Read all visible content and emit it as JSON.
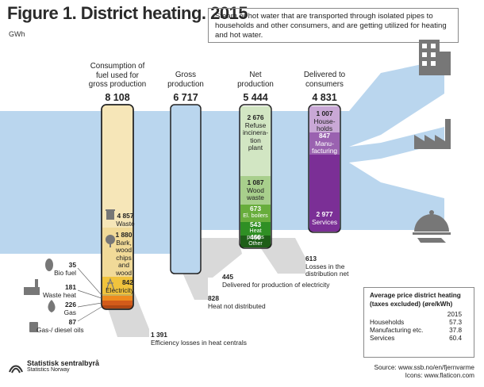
{
  "title": "Figure 1. District heating. 2015",
  "unit": "GWh",
  "note": "Steam or hot water that are transported through isolated pipes to households and other consumers, and are getting utilized for heating and hot water.",
  "columns": {
    "consumption": {
      "heading": [
        "Consumption of",
        "fuel used for",
        "gross production"
      ],
      "total": "8 108"
    },
    "gross": {
      "heading": [
        "Gross",
        "production"
      ],
      "total": "6 717"
    },
    "net": {
      "heading": [
        "Net",
        "production"
      ],
      "total": "5 444"
    },
    "delivered": {
      "heading": [
        "Delivered to",
        "consumers"
      ],
      "total": "4 831"
    }
  },
  "fuels": [
    {
      "value": "4 857",
      "label": [
        "Waste"
      ]
    },
    {
      "value": "1 880",
      "label": [
        "Bark,",
        "wood",
        "chips",
        "and",
        "wood"
      ]
    },
    {
      "value": "842",
      "label": [
        "Electricity"
      ]
    }
  ],
  "small_inputs": [
    {
      "value": "35",
      "label": "Bio fuel"
    },
    {
      "value": "181",
      "label": "Waste heat"
    },
    {
      "value": "226",
      "label": "Gas"
    },
    {
      "value": "87",
      "label": "Gas-/ diesel oils"
    }
  ],
  "net_parts": [
    {
      "value": "2 676",
      "label": [
        "Refuse",
        "incinera-",
        "tion",
        "plant"
      ]
    },
    {
      "value": "1 087",
      "label": [
        "Wood",
        "waste"
      ]
    },
    {
      "value": "673",
      "label": [
        "El. boilers"
      ]
    },
    {
      "value": "543",
      "label": [
        "Heat pumps"
      ]
    },
    {
      "value": "466",
      "label": [
        "Other"
      ]
    }
  ],
  "consumers": [
    {
      "value": "1 007",
      "label": [
        "House-",
        "holds"
      ],
      "icon": "building-icon"
    },
    {
      "value": "847",
      "label": [
        "Manu-",
        "facturing"
      ],
      "icon": "factory-icon"
    },
    {
      "value": "2 977",
      "label": [
        "Services"
      ],
      "icon": "service-cloche-icon"
    }
  ],
  "losses": [
    {
      "value": "1 391",
      "label": "Efficiency losses in heat centrals"
    },
    {
      "value": "828",
      "label": "Heat not distributed"
    },
    {
      "value": "445",
      "label": "Delivered for production of electricity"
    },
    {
      "value": "613",
      "label": [
        "Losses in the",
        "distribution net"
      ]
    }
  ],
  "price_table": {
    "heading": [
      "Average price district heating",
      "(taxes excluded) (øre/kWh)"
    ],
    "year": "2015",
    "rows": [
      {
        "label": "Households",
        "value": "57.3"
      },
      {
        "label": "Manufacturing etc.",
        "value": "37.8"
      },
      {
        "label": "Services",
        "value": "60.4"
      }
    ]
  },
  "source": [
    "Source: www.ssb.no/en/fjernvarme",
    "Icons: www.flaticon.com"
  ],
  "logo": {
    "line1": "Statistisk sentralbyrå",
    "line2": "Statistics Norway"
  },
  "colors": {
    "flow": "#bad6ee",
    "loss_flow": "#d9d9d9",
    "waste": "#f6e6b8",
    "wood": "#f1da98",
    "electricity": "#f0c33d",
    "waste_heat": "#ee8a1e",
    "gas": "#d35b1a",
    "net_refuse": "#d2e6c3",
    "net_wood": "#a8cf8c",
    "net_el": "#68ad3c",
    "net_heat": "#2f8f24",
    "net_other": "#1e5e18",
    "households": "#c9a8d6",
    "manufacturing": "#9a62b0",
    "services": "#7b2f96"
  }
}
